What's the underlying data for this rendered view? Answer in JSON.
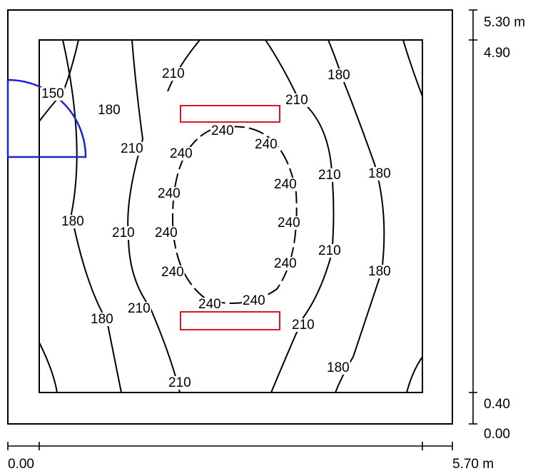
{
  "plan": {
    "contour_levels": [
      "150",
      "180",
      "210",
      "240"
    ],
    "colors": {
      "contour": "#000000",
      "luminaire": "#e0141e",
      "quarter_circle": "#1d22d2"
    }
  },
  "dimensions": {
    "right": [
      "5.30 m",
      "4.90",
      "0.40",
      "0.00"
    ],
    "bottom": [
      "0.00",
      "5.70 m"
    ]
  },
  "labels": [
    "150",
    "180",
    "210",
    "180",
    "210",
    "210",
    "240",
    "240",
    "240",
    "210",
    "180",
    "240",
    "240",
    "180",
    "210",
    "240",
    "240",
    "210",
    "240",
    "240",
    "180",
    "210",
    "180",
    "240",
    "240",
    "210",
    "210",
    "180"
  ]
}
